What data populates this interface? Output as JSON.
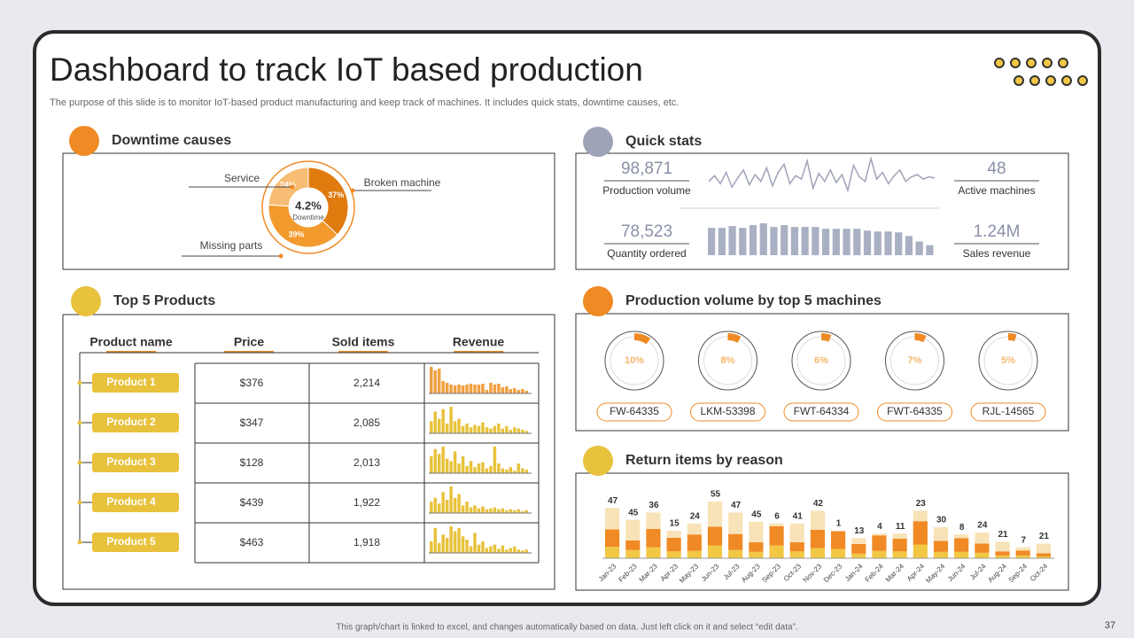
{
  "header": {
    "title": "Dashboard to track IoT based production",
    "subtitle": "The purpose of this slide is to monitor IoT-based product manufacturing and keep track of machines. It includes quick stats, downtime causes, etc."
  },
  "sections": {
    "downtime": "Downtime causes",
    "quick": "Quick stats",
    "products": "Top 5 Products",
    "machines": "Production volume by top 5 machines",
    "returns": "Return items by reason"
  },
  "quick_stats": [
    {
      "value": "98,871",
      "label": "Production volume"
    },
    {
      "value": "48",
      "label": "Active machines"
    },
    {
      "value": "78,523",
      "label": "Quantity ordered"
    },
    {
      "value": "1.24M",
      "label": "Sales revenue"
    }
  ],
  "table": {
    "headers": [
      "Product name",
      "Price",
      "Sold items",
      "Revenue"
    ],
    "rows": [
      {
        "name": "Product 1",
        "price": "$376",
        "sold": "2,214",
        "color": "#f0a040",
        "revenue": [
          30,
          26,
          28,
          14,
          12,
          10,
          9,
          10,
          9,
          10,
          11,
          10,
          10,
          11,
          4,
          12,
          10,
          11,
          7,
          8,
          5,
          6,
          4,
          5,
          3
        ]
      },
      {
        "name": "Product 2",
        "price": "$347",
        "sold": "2,085",
        "color": "#e8c23c",
        "revenue": [
          10,
          18,
          12,
          20,
          8,
          22,
          10,
          12,
          6,
          8,
          5,
          7,
          6,
          9,
          5,
          4,
          6,
          8,
          4,
          6,
          3,
          5,
          4,
          3,
          2
        ]
      },
      {
        "name": "Product 3",
        "price": "$128",
        "sold": "2,013",
        "color": "#e8c23c",
        "revenue": [
          14,
          20,
          16,
          22,
          12,
          10,
          18,
          8,
          14,
          6,
          10,
          5,
          8,
          9,
          4,
          6,
          22,
          8,
          4,
          3,
          5,
          2,
          8,
          4,
          3
        ]
      },
      {
        "name": "Product 4",
        "price": "$439",
        "sold": "1,922",
        "color": "#e8c23c",
        "revenue": [
          12,
          16,
          10,
          22,
          14,
          28,
          16,
          20,
          8,
          12,
          6,
          8,
          5,
          7,
          4,
          5,
          6,
          4,
          5,
          3,
          4,
          3,
          4,
          2,
          3
        ]
      },
      {
        "name": "Product 5",
        "price": "$463",
        "sold": "1,918",
        "color": "#e8c23c",
        "revenue": [
          14,
          30,
          12,
          22,
          18,
          32,
          26,
          30,
          20,
          16,
          8,
          24,
          10,
          14,
          6,
          8,
          10,
          5,
          9,
          4,
          6,
          8,
          4,
          3,
          4
        ]
      }
    ]
  },
  "chart_data": [
    {
      "type": "donut",
      "center_value": "4.2%",
      "center_label": "Downtime",
      "categories": [
        "Broken machine",
        "Missing parts",
        "Service"
      ],
      "values": [
        37,
        39,
        24
      ],
      "value_labels": [
        "37%",
        "39%",
        "24%"
      ],
      "colors": [
        "#e07b0f",
        "#f39a2e",
        "#f7bd74"
      ]
    },
    {
      "type": "line",
      "color": "#9ea3b8",
      "values": [
        30,
        35,
        28,
        38,
        25,
        33,
        40,
        27,
        36,
        30,
        42,
        26,
        38,
        45,
        28,
        35,
        32,
        48,
        24,
        37,
        30,
        40,
        29,
        36,
        22,
        44,
        34,
        30,
        50,
        32,
        38,
        28,
        35,
        40,
        30,
        34,
        36,
        32,
        34,
        33
      ]
    },
    {
      "type": "bar",
      "color": "#aab0c4",
      "values": [
        30,
        30,
        32,
        30,
        33,
        35,
        31,
        33,
        31,
        31,
        31,
        29,
        29,
        29,
        29,
        27,
        26,
        26,
        25,
        21,
        15,
        11
      ]
    },
    {
      "type": "gauge",
      "color": "#f08a24",
      "categories": [
        "FW-64335",
        "LKM-53398",
        "FWT-64334",
        "FWT-64335",
        "RJL-14565"
      ],
      "values": [
        10,
        8,
        6,
        7,
        5
      ],
      "value_labels": [
        "10%",
        "8%",
        "6%",
        "7%",
        "5%"
      ]
    },
    {
      "type": "stacked-bar",
      "categories": [
        "Jan-23",
        "Feb-23",
        "Mar-23",
        "Apr-23",
        "May-23",
        "Jun-23",
        "Jul-23",
        "Aug-23",
        "Sep-23",
        "Oct-23",
        "Nov-23",
        "Dec-23",
        "Jan-24",
        "Feb-24",
        "Mar-24",
        "Apr-24",
        "May-24",
        "Jun-24",
        "Jul-24",
        "Aug-24",
        "Sep-24",
        "Oct-24"
      ],
      "series": [
        {
          "color": "#f2c744",
          "values": [
            25,
            18,
            24,
            15,
            16,
            28,
            18,
            14,
            28,
            15,
            22,
            20,
            10,
            16,
            15,
            30,
            14,
            14,
            12,
            6,
            6,
            4
          ]
        },
        {
          "color": "#f08a24",
          "values": [
            38,
            21,
            40,
            30,
            36,
            41,
            35,
            21,
            42,
            20,
            40,
            39,
            21,
            34,
            28,
            51,
            24,
            30,
            20,
            9,
            11,
            7
          ]
        },
        {
          "color": "#f8e3b8",
          "values": [
            47,
            45,
            36,
            15,
            24,
            55,
            47,
            45,
            6,
            41,
            42,
            1,
            13,
            4,
            11,
            23,
            30,
            8,
            24,
            21,
            7,
            21
          ]
        }
      ]
    }
  ],
  "footer": {
    "note": "This graph/chart is linked to excel, and changes automatically based on data. Just left click on it and select “edit data”.",
    "page": "37"
  }
}
